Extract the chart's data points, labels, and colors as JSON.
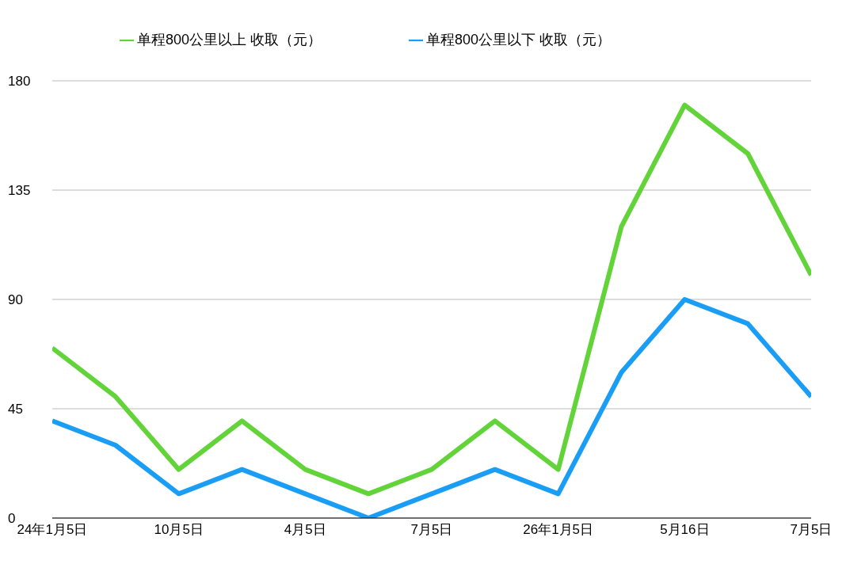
{
  "chart_data": {
    "type": "line",
    "categories": [
      "24年1月5日",
      null,
      "10月5日",
      null,
      "4月5日",
      null,
      "7月5日",
      null,
      "26年1月5日",
      null,
      "5月16日",
      null,
      "7月5日"
    ],
    "series": [
      {
        "name": "单程800公里以下 收取（元）",
        "color": "#1a9ef5",
        "values": [
          40,
          30,
          10,
          20,
          10,
          0,
          10,
          20,
          10,
          60,
          90,
          80,
          50
        ]
      },
      {
        "name": "单程800公里以上 收取（元）",
        "color": "#62d43a",
        "values": [
          70,
          50,
          20,
          40,
          20,
          10,
          20,
          40,
          20,
          120,
          170,
          150,
          100
        ]
      }
    ],
    "ylim": [
      0,
      180
    ],
    "yticks": [
      0,
      45,
      90,
      135,
      180
    ],
    "grid": "y",
    "legend": "top",
    "marker": "none",
    "line_style": "solid"
  }
}
